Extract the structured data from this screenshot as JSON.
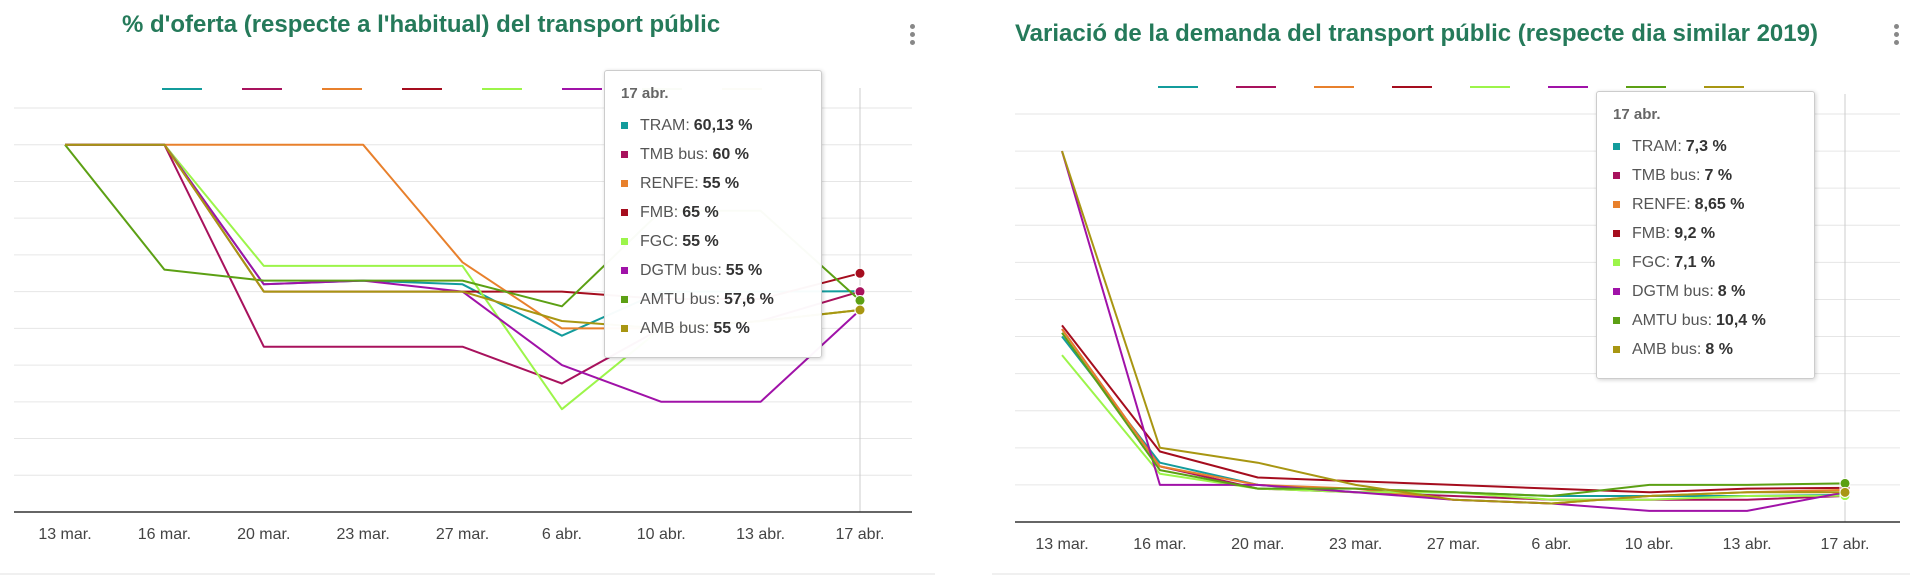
{
  "charts": [
    {
      "title": "% d'oferta (respecte a l'habitual) del transport públic",
      "tooltip": {
        "date": "17 abr.",
        "items": [
          {
            "label": "TRAM:",
            "value": "60,13 %"
          },
          {
            "label": "TMB bus:",
            "value": "60 %"
          },
          {
            "label": "RENFE:",
            "value": "55 %"
          },
          {
            "label": "FMB:",
            "value": "65 %"
          },
          {
            "label": "FGC:",
            "value": "55 %"
          },
          {
            "label": "DGTM bus:",
            "value": "55 %"
          },
          {
            "label": "AMTU bus:",
            "value": "57,6 %"
          },
          {
            "label": "AMB bus:",
            "value": "55 %"
          }
        ]
      }
    },
    {
      "title": "Variació de la demanda del transport públic (respecte dia similar 2019)",
      "tooltip": {
        "date": "17 abr.",
        "items": [
          {
            "label": "TRAM:",
            "value": "7,3 %"
          },
          {
            "label": "TMB bus:",
            "value": "7 %"
          },
          {
            "label": "RENFE:",
            "value": "8,65 %"
          },
          {
            "label": "FMB:",
            "value": "9,2 %"
          },
          {
            "label": "FGC:",
            "value": "7,1 %"
          },
          {
            "label": "DGTM bus:",
            "value": "8 %"
          },
          {
            "label": "AMTU bus:",
            "value": "10,4 %"
          },
          {
            "label": "AMB bus:",
            "value": "8 %"
          }
        ]
      }
    }
  ],
  "colors": {
    "TRAM": "#139c9c",
    "TMB bus": "#a8125d",
    "RENFE": "#e8802c",
    "FMB": "#a50d1e",
    "FGC": "#9cf54a",
    "DGTM bus": "#a012a8",
    "AMTU bus": "#5ca014",
    "AMB bus": "#a89612",
    "title": "#257a5a"
  },
  "chart_data": [
    {
      "type": "line",
      "title": "% d'oferta (respecte a l'habitual) del transport públic",
      "categories": [
        "13 mar.",
        "16 mar.",
        "20 mar.",
        "23 mar.",
        "27 mar.",
        "6 abr.",
        "10 abr.",
        "13 abr.",
        "17 abr."
      ],
      "ylim": [
        0,
        110
      ],
      "grid": true,
      "legend": "top, no labels",
      "series": [
        {
          "name": "TRAM",
          "values": [
            100,
            100,
            62,
            63,
            62,
            48,
            60,
            60,
            60.13
          ]
        },
        {
          "name": "TMB bus",
          "values": [
            100,
            100,
            45,
            45,
            45,
            35,
            50,
            52,
            60
          ]
        },
        {
          "name": "RENFE",
          "values": [
            100,
            100,
            100,
            100,
            68,
            50,
            50,
            52,
            55
          ]
        },
        {
          "name": "FMB",
          "values": [
            100,
            100,
            60,
            60,
            60,
            60,
            58,
            58,
            65
          ]
        },
        {
          "name": "FGC",
          "values": [
            100,
            100,
            67,
            67,
            67,
            28,
            50,
            52,
            55
          ]
        },
        {
          "name": "DGTM bus",
          "values": [
            100,
            100,
            62,
            63,
            60,
            40,
            30,
            30,
            55
          ]
        },
        {
          "name": "AMTU bus",
          "values": [
            100,
            66,
            63,
            63,
            63,
            56,
            82,
            82,
            57.6
          ]
        },
        {
          "name": "AMB bus",
          "values": [
            100,
            100,
            60,
            60,
            60,
            52,
            50,
            52,
            55
          ]
        }
      ]
    },
    {
      "type": "line",
      "title": "Variació de la demanda del transport públic (respecte dia similar 2019)",
      "categories": [
        "13 mar.",
        "16 mar.",
        "20 mar.",
        "23 mar.",
        "27 mar.",
        "6 abr.",
        "10 abr.",
        "13 abr.",
        "17 abr."
      ],
      "ylim": [
        0,
        110
      ],
      "grid": true,
      "legend": "top, no labels",
      "series": [
        {
          "name": "TRAM",
          "values": [
            50,
            16,
            10,
            8,
            8,
            7,
            7,
            7,
            7.3
          ]
        },
        {
          "name": "TMB bus",
          "values": [
            52,
            15,
            9,
            8,
            7,
            6,
            6,
            6,
            7
          ]
        },
        {
          "name": "RENFE",
          "values": [
            52,
            15,
            10,
            9,
            6,
            5,
            7,
            8,
            8.65
          ]
        },
        {
          "name": "FMB",
          "values": [
            53,
            19,
            12,
            11,
            10,
            9,
            8,
            9,
            9.2
          ]
        },
        {
          "name": "FGC",
          "values": [
            45,
            13,
            9,
            8,
            8,
            6,
            6,
            7,
            7.1
          ]
        },
        {
          "name": "DGTM bus",
          "values": [
            100,
            10,
            10,
            8,
            6,
            5,
            3,
            3,
            8
          ]
        },
        {
          "name": "AMTU bus",
          "values": [
            51,
            14,
            9,
            9,
            8,
            7,
            10,
            10,
            10.4
          ]
        },
        {
          "name": "AMB bus",
          "values": [
            100,
            20,
            16,
            10,
            6,
            5,
            7,
            8,
            8
          ]
        }
      ]
    }
  ]
}
